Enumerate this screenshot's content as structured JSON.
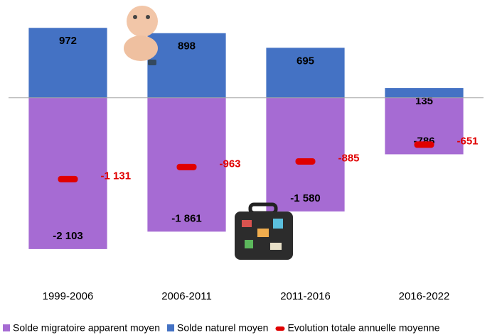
{
  "chart_data": {
    "type": "bar",
    "stacked": true,
    "categories": [
      "1999-2006",
      "2006-2011",
      "2011-2016",
      "2016-2022"
    ],
    "series": [
      {
        "name": "Solde migratoire apparent moyen",
        "color": "#a66bd3",
        "values": [
          -2103,
          -1861,
          -1580,
          -786
        ],
        "value_labels": [
          "-2 103",
          "-1 861",
          "-1 580",
          "-786"
        ]
      },
      {
        "name": "Solde naturel moyen",
        "color": "#4472c4",
        "values": [
          972,
          898,
          695,
          135
        ]
      },
      {
        "name": "Evolution totale annuelle moyenne",
        "color": "#e00000",
        "type": "marker",
        "values": [
          -1131,
          -963,
          -885,
          -651
        ],
        "value_labels": [
          "-1 131",
          "-963",
          "-885",
          "-651"
        ]
      }
    ],
    "ylim": [
      -2400,
      1300
    ],
    "legend": "bottom"
  }
}
